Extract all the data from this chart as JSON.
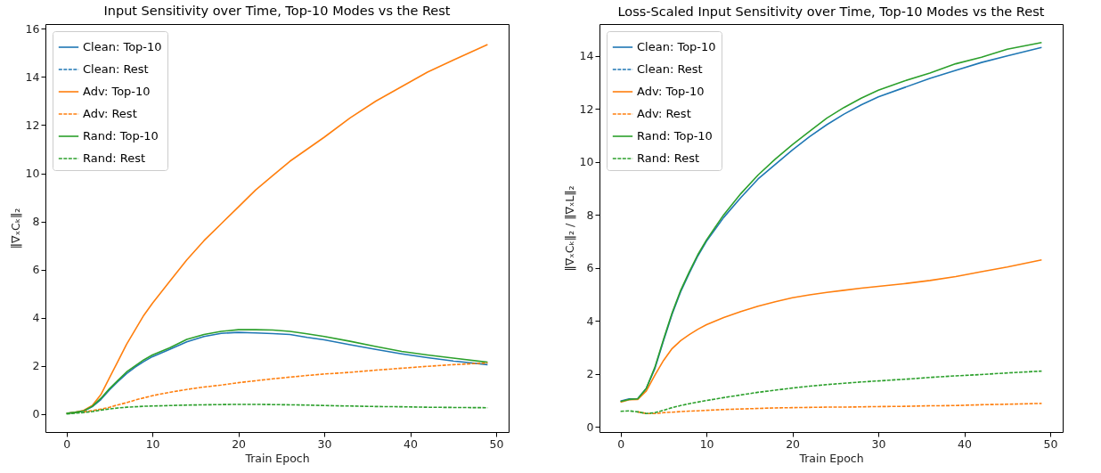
{
  "chart_data": [
    {
      "type": "line",
      "title": "Input Sensitivity over Time, Top-10 Modes vs the Rest",
      "xlabel": "Train Epoch",
      "ylabel": "‖∇ₓCₖ‖₂",
      "legend": "top left",
      "grid": false,
      "x": [
        0,
        1,
        2,
        3,
        4,
        5,
        6,
        7,
        8,
        9,
        10,
        12,
        14,
        16,
        18,
        20,
        22,
        24,
        26,
        28,
        30,
        33,
        36,
        39,
        42,
        45,
        49
      ],
      "xlim": [
        -2.45,
        51.45
      ],
      "xticks": [
        0,
        10,
        20,
        30,
        40,
        50
      ],
      "ylim": [
        -0.75,
        16.2
      ],
      "yticks": [
        0,
        2,
        4,
        6,
        8,
        10,
        12,
        14,
        16
      ],
      "series": [
        {
          "name": "Clean: Top-10",
          "color": "#1f77b4",
          "line_style": "solid",
          "values": [
            0.03,
            0.06,
            0.12,
            0.3,
            0.6,
            1.0,
            1.35,
            1.68,
            1.95,
            2.18,
            2.38,
            2.68,
            3.0,
            3.22,
            3.35,
            3.39,
            3.37,
            3.34,
            3.3,
            3.18,
            3.08,
            2.88,
            2.68,
            2.5,
            2.34,
            2.2,
            2.05
          ]
        },
        {
          "name": "Clean: Rest",
          "color": "#1f77b4",
          "line_style": "dashed",
          "values": [
            null,
            null,
            null,
            null,
            null,
            null,
            null,
            null,
            null,
            null,
            null,
            null,
            null,
            null,
            null,
            null,
            null,
            null,
            null,
            null,
            null,
            null,
            null,
            null,
            null,
            null,
            null
          ]
        },
        {
          "name": "Adv: Top-10",
          "color": "#ff7f0e",
          "line_style": "solid",
          "values": [
            0.03,
            0.07,
            0.15,
            0.35,
            0.8,
            1.5,
            2.2,
            2.9,
            3.5,
            4.1,
            4.6,
            5.5,
            6.4,
            7.2,
            7.9,
            8.6,
            9.3,
            9.9,
            10.5,
            11.0,
            11.5,
            12.3,
            13.0,
            13.6,
            14.2,
            14.7,
            15.35
          ]
        },
        {
          "name": "Adv: Rest",
          "color": "#ff7f0e",
          "line_style": "dashed",
          "values": [
            null,
            null,
            0.08,
            0.14,
            0.2,
            0.28,
            0.38,
            0.47,
            0.58,
            0.67,
            0.76,
            0.9,
            1.02,
            1.12,
            1.2,
            1.3,
            1.38,
            1.46,
            1.53,
            1.6,
            1.66,
            1.73,
            1.82,
            1.9,
            1.98,
            2.05,
            2.12
          ]
        },
        {
          "name": "Rand: Top-10",
          "color": "#2ca02c",
          "line_style": "solid",
          "values": [
            0.03,
            0.07,
            0.13,
            0.32,
            0.65,
            1.05,
            1.4,
            1.75,
            2.0,
            2.25,
            2.45,
            2.75,
            3.1,
            3.3,
            3.43,
            3.5,
            3.5,
            3.49,
            3.43,
            3.33,
            3.22,
            3.02,
            2.8,
            2.6,
            2.45,
            2.32,
            2.15
          ]
        },
        {
          "name": "Rand: Rest",
          "color": "#2ca02c",
          "line_style": "dashed",
          "values": [
            0.0,
            0.03,
            0.06,
            0.1,
            0.16,
            0.21,
            0.25,
            0.28,
            0.3,
            0.32,
            0.33,
            0.35,
            0.37,
            0.38,
            0.39,
            0.4,
            0.4,
            0.39,
            0.38,
            0.37,
            0.35,
            0.33,
            0.31,
            0.3,
            0.28,
            0.27,
            0.26
          ]
        }
      ]
    },
    {
      "type": "line",
      "title": "Loss-Scaled Input Sensitivity over Time, Top-10 Modes vs the Rest",
      "xlabel": "Train Epoch",
      "ylabel": "‖∇ₓCₖ‖₂ / ‖∇ₓL‖₂",
      "legend": "top left",
      "grid": false,
      "x": [
        0,
        1,
        2,
        3,
        4,
        5,
        6,
        7,
        8,
        9,
        10,
        12,
        14,
        16,
        18,
        20,
        22,
        24,
        26,
        28,
        30,
        33,
        36,
        39,
        42,
        45,
        49
      ],
      "xlim": [
        -2.45,
        51.45
      ],
      "xticks": [
        0,
        10,
        20,
        30,
        40,
        50
      ],
      "ylim": [
        -0.2,
        15.2
      ],
      "yticks": [
        0,
        2,
        4,
        6,
        8,
        10,
        12,
        14
      ],
      "series": [
        {
          "name": "Clean: Top-10",
          "color": "#1f77b4",
          "line_style": "solid",
          "values": [
            0.97,
            1.05,
            1.06,
            1.45,
            2.2,
            3.25,
            4.25,
            5.1,
            5.8,
            6.45,
            7.0,
            7.9,
            8.65,
            9.35,
            9.9,
            10.45,
            10.95,
            11.4,
            11.8,
            12.15,
            12.45,
            12.8,
            13.15,
            13.45,
            13.75,
            14.0,
            14.32
          ]
        },
        {
          "name": "Clean: Rest",
          "color": "#1f77b4",
          "line_style": "dashed",
          "values": [
            null,
            null,
            null,
            null,
            null,
            null,
            null,
            null,
            null,
            null,
            null,
            null,
            null,
            null,
            null,
            null,
            null,
            null,
            null,
            null,
            null,
            null,
            null,
            null,
            null,
            null,
            null
          ]
        },
        {
          "name": "Adv: Top-10",
          "color": "#ff7f0e",
          "line_style": "solid",
          "values": [
            0.93,
            1.02,
            1.03,
            1.35,
            1.95,
            2.5,
            2.95,
            3.25,
            3.48,
            3.68,
            3.85,
            4.12,
            4.35,
            4.55,
            4.72,
            4.87,
            4.98,
            5.07,
            5.15,
            5.23,
            5.3,
            5.4,
            5.52,
            5.67,
            5.85,
            6.03,
            6.3
          ]
        },
        {
          "name": "Adv: Rest",
          "color": "#ff7f0e",
          "line_style": "dashed",
          "values": [
            null,
            null,
            0.56,
            0.5,
            0.5,
            0.53,
            0.55,
            0.57,
            0.59,
            0.6,
            0.62,
            0.65,
            0.67,
            0.69,
            0.71,
            0.72,
            0.73,
            0.74,
            0.74,
            0.75,
            0.76,
            0.77,
            0.79,
            0.8,
            0.83,
            0.85,
            0.88
          ]
        },
        {
          "name": "Rand: Top-10",
          "color": "#2ca02c",
          "line_style": "solid",
          "values": [
            0.95,
            1.03,
            1.05,
            1.45,
            2.25,
            3.3,
            4.3,
            5.15,
            5.85,
            6.5,
            7.05,
            8.0,
            8.8,
            9.5,
            10.1,
            10.65,
            11.15,
            11.65,
            12.05,
            12.4,
            12.7,
            13.05,
            13.35,
            13.7,
            13.95,
            14.25,
            14.5
          ]
        },
        {
          "name": "Rand: Rest",
          "color": "#2ca02c",
          "line_style": "dashed",
          "values": [
            0.58,
            0.6,
            0.56,
            0.5,
            0.53,
            0.62,
            0.72,
            0.8,
            0.87,
            0.93,
            0.99,
            1.1,
            1.2,
            1.3,
            1.38,
            1.46,
            1.53,
            1.59,
            1.64,
            1.69,
            1.73,
            1.79,
            1.86,
            1.92,
            1.97,
            2.03,
            2.1
          ]
        }
      ]
    }
  ]
}
